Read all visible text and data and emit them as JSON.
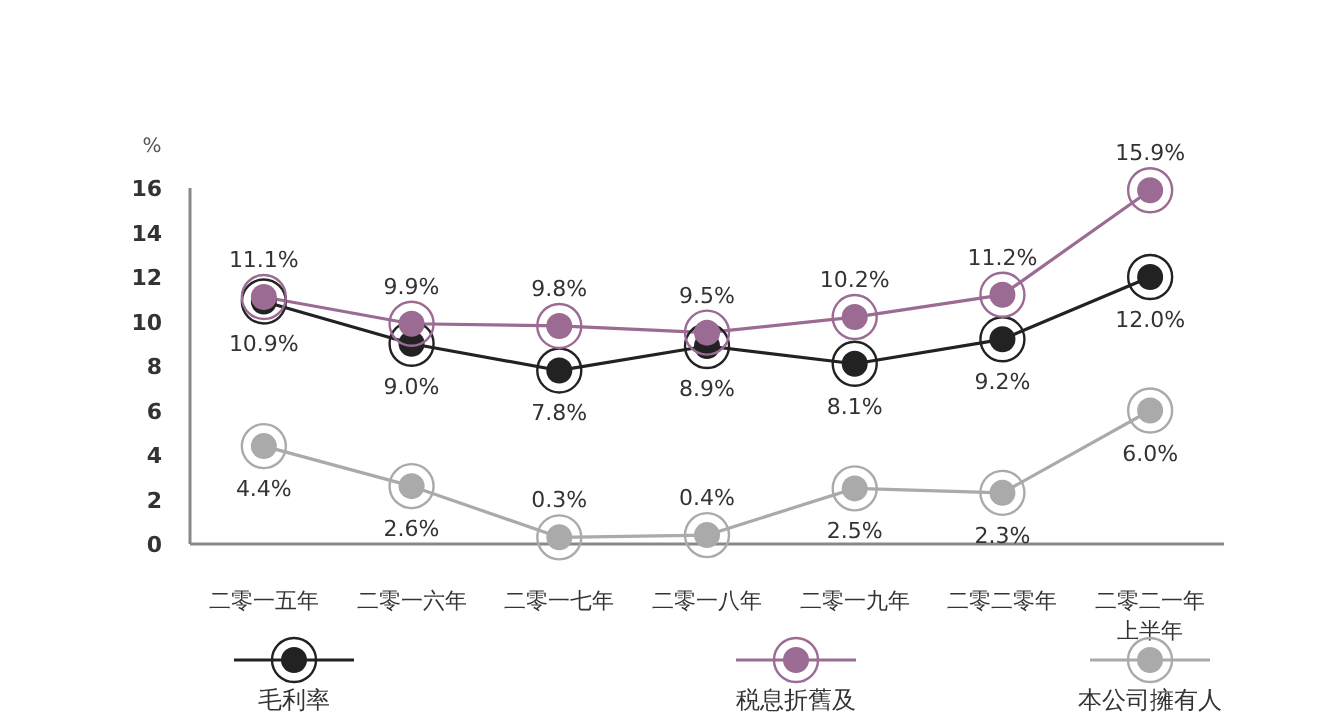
{
  "chart_data": {
    "type": "line",
    "categories": [
      "二零一五年",
      "二零一六年",
      "二零一七年",
      "二零一八年",
      "二零一九年",
      "二零二零年",
      "二零二一年上半年"
    ],
    "ylabel": "%",
    "ylim": [
      0,
      16
    ],
    "yticks": [
      0,
      2,
      4,
      6,
      8,
      10,
      12,
      14,
      16
    ],
    "grid": false,
    "legend": "bottom",
    "marker": "circle",
    "line_style": "solid",
    "series": [
      {
        "name": "毛利率",
        "color": "#222222",
        "values": [
          10.9,
          9.0,
          7.8,
          8.9,
          8.1,
          9.2,
          12.0
        ],
        "value_labels": [
          "10.9%",
          "9.0%",
          "7.8%",
          "8.9%",
          "8.1%",
          "9.2%",
          "12.0%"
        ]
      },
      {
        "name": "税息折舊及",
        "color": "#9b6b94",
        "values": [
          11.1,
          9.9,
          9.8,
          9.5,
          10.2,
          11.2,
          15.9
        ],
        "value_labels": [
          "11.1%",
          "9.9%",
          "9.8%",
          "9.5%",
          "10.2%",
          "11.2%",
          "15.9%"
        ]
      },
      {
        "name": "本公司擁有人",
        "color": "#aaaaaa",
        "values": [
          4.4,
          2.6,
          0.3,
          0.4,
          2.5,
          2.3,
          6.0
        ],
        "value_labels": [
          "4.4%",
          "2.6%",
          "0.3%",
          "0.4%",
          "2.5%",
          "2.3%",
          "6.0%"
        ]
      }
    ]
  }
}
